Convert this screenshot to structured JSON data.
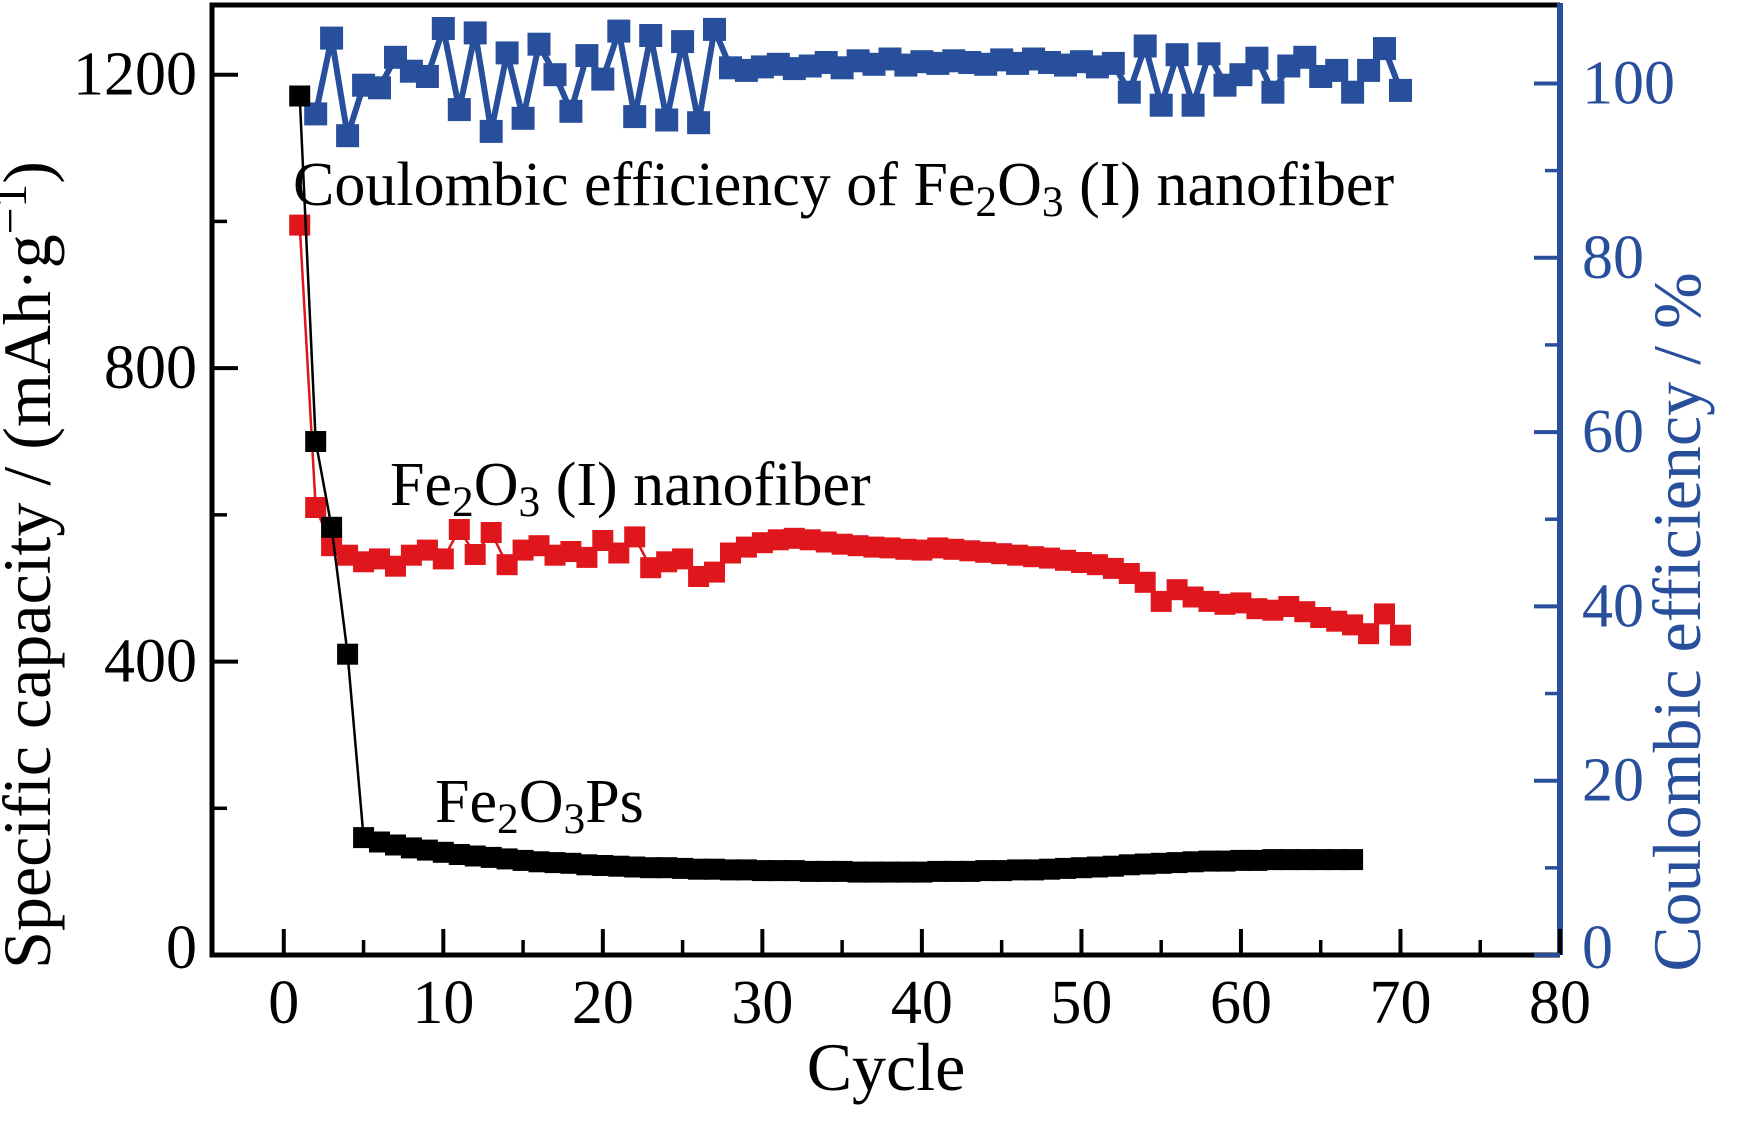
{
  "figure": {
    "background": "#ffffff",
    "colors": {
      "capacity_axis": "#000000",
      "efficiency_axis": "#284f9b",
      "fe2o3_nanofiber_series": "#df161c",
      "fe2o3ps_series": "#000000",
      "efficiency_series": "#284f9b"
    }
  },
  "chart_data": {
    "type": "scatter",
    "title": "",
    "xlabel": "Cycle",
    "ylabel_left_segments": [
      {
        "t": "Specific capacity / (mAh·g"
      },
      {
        "t": "−1",
        "sup": true
      },
      {
        "t": ")"
      }
    ],
    "ylabel_right_segments": [
      {
        "t": "Coulombic efficiency / %"
      }
    ],
    "xlim": [
      -4.5,
      80
    ],
    "ylim_left": [
      0,
      1295
    ],
    "ylim_right": [
      0,
      109
    ],
    "grid": false,
    "legend": "none (in-plot text annotations)",
    "x_ticks_major": [
      0,
      10,
      20,
      30,
      40,
      50,
      60,
      70,
      80
    ],
    "x_ticks_minor": [
      5,
      15,
      25,
      35,
      45,
      55,
      65,
      75
    ],
    "x_tick_labels": [
      "0",
      "10",
      "20",
      "30",
      "40",
      "50",
      "60",
      "70",
      "80"
    ],
    "y_left_ticks_major": [
      1200,
      800,
      400,
      0
    ],
    "y_left_ticks_minor": [
      1000,
      600,
      200
    ],
    "y_left_tick_labels": [
      "1200",
      "800",
      "400",
      "0"
    ],
    "y_right_ticks_major": [
      100,
      80,
      60,
      40,
      20,
      0
    ],
    "y_right_ticks_minor": [
      90,
      70,
      50,
      30,
      10
    ],
    "y_right_tick_labels": [
      "100",
      "80",
      "60",
      "40",
      "20",
      "0"
    ],
    "series": [
      {
        "id": "efficiency",
        "name": "Coulombic efficiency of Fe2O3 (I) nanofiber",
        "axis": "right",
        "unit": "%",
        "color": "#284f9b",
        "marker": "square",
        "marker_size": 23,
        "line_width": 6,
        "cycles_from": 2,
        "values": [
          96.5,
          105.2,
          94.0,
          99.8,
          99.5,
          103.0,
          101.4,
          100.8,
          106.3,
          97.0,
          105.8,
          94.5,
          103.5,
          96.0,
          104.5,
          101.0,
          96.8,
          103.2,
          100.5,
          106.0,
          96.2,
          105.5,
          95.8,
          104.8,
          95.5,
          106.2,
          101.8,
          101.5,
          101.9,
          102.2,
          101.7,
          102.0,
          102.4,
          101.8,
          102.6,
          102.2,
          102.8,
          102.1,
          102.5,
          102.3,
          102.6,
          102.4,
          102.2,
          102.7,
          102.3,
          102.8,
          102.4,
          102.1,
          102.5,
          101.9,
          102.3,
          99.0,
          104.3,
          97.5,
          103.3,
          97.5,
          103.4,
          99.8,
          101.0,
          102.9,
          99.0,
          102.0,
          103.0,
          100.8,
          101.5,
          99.0,
          101.5,
          104.0,
          99.2
        ]
      },
      {
        "id": "fe2o3_nanofiber",
        "name": "Fe2O3 (I) nanofiber specific capacity",
        "axis": "left",
        "unit": "mAh·g−1",
        "color": "#df161c",
        "marker": "square",
        "marker_size": 21,
        "line_width": 2.5,
        "cycles_from": 1,
        "values": [
          995,
          610,
          558,
          545,
          536,
          540,
          530,
          545,
          552,
          540,
          580,
          546,
          576,
          532,
          552,
          558,
          545,
          550,
          542,
          565,
          548,
          570,
          528,
          536,
          540,
          516,
          522,
          548,
          556,
          562,
          566,
          568,
          566,
          563,
          560,
          558,
          556,
          555,
          553,
          552,
          555,
          553,
          551,
          549,
          547,
          545,
          543,
          541,
          538,
          535,
          532,
          527,
          520,
          508,
          482,
          498,
          488,
          482,
          478,
          480,
          472,
          470,
          475,
          468,
          460,
          455,
          450,
          438,
          465,
          436
        ]
      },
      {
        "id": "fe2o3ps",
        "name": "Fe2O3Ps specific capacity",
        "axis": "left",
        "unit": "mAh·g−1",
        "color": "#000000",
        "marker": "square",
        "marker_size": 21,
        "line_width": 2.5,
        "cycles_from": 1,
        "values": [
          1171,
          700,
          583,
          410,
          160,
          154,
          150,
          146,
          143,
          140,
          137,
          135,
          133,
          131,
          129,
          127,
          126,
          125,
          123,
          122,
          121,
          120,
          119,
          119,
          118,
          117,
          117,
          116,
          116,
          115,
          115,
          115,
          114,
          114,
          114,
          113,
          113,
          113,
          113,
          113,
          114,
          114,
          114,
          115,
          115,
          116,
          116,
          117,
          118,
          119,
          120,
          121,
          123,
          124,
          125,
          126,
          127,
          128,
          128,
          129,
          129,
          130,
          130,
          130,
          130,
          130,
          130
        ]
      }
    ],
    "annotations": [
      {
        "id": "efficiency-label",
        "color": "#000000",
        "segments": [
          {
            "t": "Coulombic efficiency of Fe"
          },
          {
            "t": "2",
            "sub": true
          },
          {
            "t": "O"
          },
          {
            "t": "3",
            "sub": true
          },
          {
            "t": " (I) nanofiber"
          }
        ]
      },
      {
        "id": "nanofiber-label",
        "color": "#000000",
        "segments": [
          {
            "t": "Fe"
          },
          {
            "t": "2",
            "sub": true
          },
          {
            "t": "O"
          },
          {
            "t": "3",
            "sub": true
          },
          {
            "t": " (I) nanofiber"
          }
        ]
      },
      {
        "id": "ps-label",
        "color": "#000000",
        "segments": [
          {
            "t": "Fe"
          },
          {
            "t": "2",
            "sub": true
          },
          {
            "t": "O"
          },
          {
            "t": "3",
            "sub": true
          },
          {
            "t": "Ps"
          }
        ]
      }
    ]
  }
}
